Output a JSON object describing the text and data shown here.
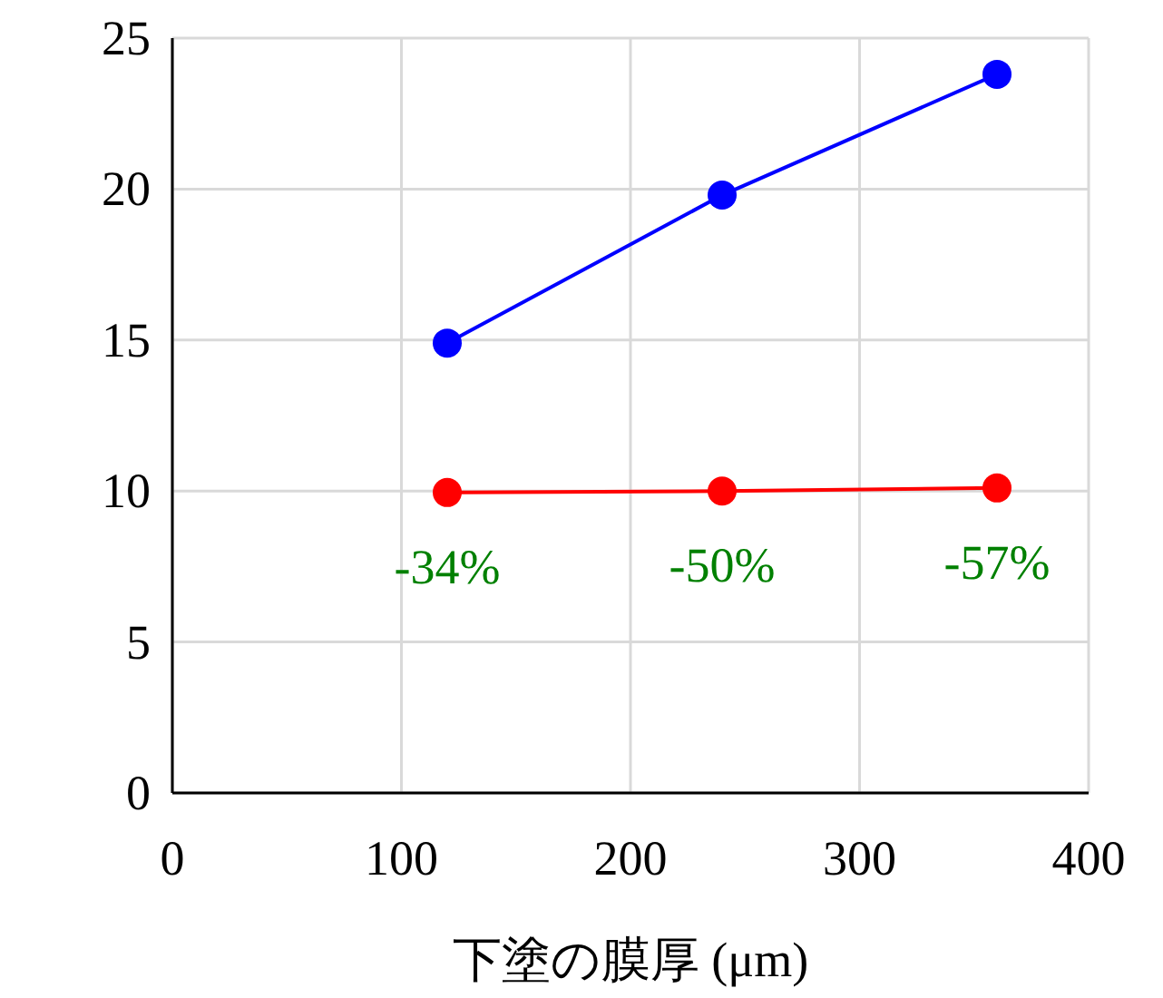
{
  "chart_data": {
    "type": "line",
    "xlabel": "下塗の膜厚 (μm)",
    "x": [
      120,
      240,
      360
    ],
    "series": [
      {
        "color": "#0000ff",
        "values": [
          14.9,
          19.8,
          23.8
        ]
      },
      {
        "color": "#ff0000",
        "values": [
          9.95,
          10.0,
          10.1
        ]
      }
    ],
    "xlim": [
      0,
      400
    ],
    "xticks": [
      0,
      100,
      200,
      300,
      400
    ],
    "ylim": [
      0,
      25
    ],
    "yticks": [
      0,
      5,
      10,
      15,
      20,
      25
    ],
    "grid": true,
    "marker": "circle",
    "line_style": "solid",
    "annotations": [
      {
        "text": "-34%",
        "x": 120,
        "y": 9.95
      },
      {
        "text": "-50%",
        "x": 240,
        "y": 10.0
      },
      {
        "text": "-57%",
        "x": 360,
        "y": 10.1
      }
    ]
  }
}
